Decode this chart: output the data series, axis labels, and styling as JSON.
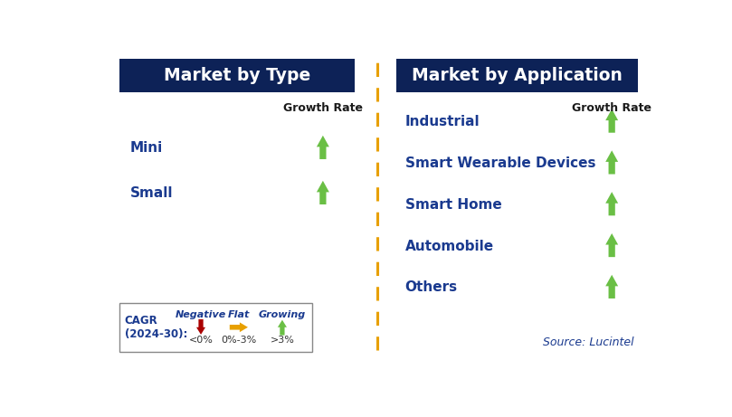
{
  "title_left": "Market by Type",
  "title_right": "Market by Application",
  "header_bg_color": "#0d2257",
  "header_text_color": "#ffffff",
  "left_items": [
    "Mini",
    "Small"
  ],
  "right_items": [
    "Industrial",
    "Smart Wearable Devices",
    "Smart Home",
    "Automobile",
    "Others"
  ],
  "item_text_color": "#1a3a8f",
  "growth_rate_label": "Growth Rate",
  "growth_rate_color": "#1a1a1a",
  "arrow_up_color": "#6abf45",
  "arrow_down_color": "#aa0000",
  "arrow_flat_color": "#e8a000",
  "legend_title": "CAGR\n(2024-30):",
  "legend_labels": [
    "Negative",
    "Flat",
    "Growing"
  ],
  "legend_thresholds": [
    "<0%",
    "0%-3%",
    ">3%"
  ],
  "legend_colors": [
    "#aa0000",
    "#e8a000",
    "#6abf45"
  ],
  "source_text": "Source: Lucintel",
  "divider_color": "#e8a000",
  "background_color": "#ffffff"
}
